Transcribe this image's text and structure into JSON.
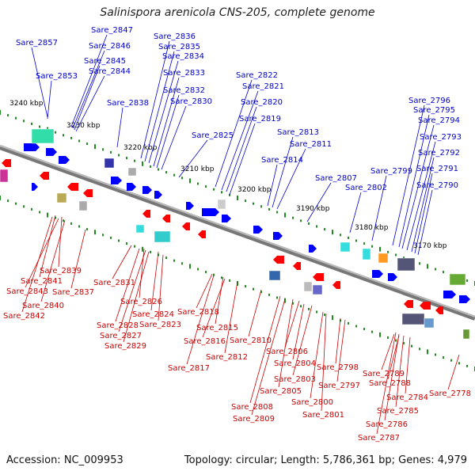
{
  "title": "Salinispora arenicola CNS-205, complete genome",
  "footer": {
    "accession": "Accession: NC_009953",
    "topology": "Topology: circular; Length: 5,786,361 bp; Genes: 4,979"
  },
  "colors": {
    "forward_gene": "#0000ff",
    "reverse_gene": "#ff0000",
    "backbone": "#888888",
    "tick": "#228b22"
  },
  "kbp_labels": [
    "3240 kbp",
    "3230 kbp",
    "3220 kbp",
    "3210 kbp",
    "3200 kbp",
    "3190 kbp",
    "3180 kbp",
    "3170 kbp"
  ],
  "blue_labels": [
    "Sare_2857",
    "Sare_2853",
    "Sare_2847",
    "Sare_2846",
    "Sare_2845",
    "Sare_2844",
    "Sare_2838",
    "Sare_2836",
    "Sare_2835",
    "Sare_2834",
    "Sare_2833",
    "Sare_2832",
    "Sare_2830",
    "Sare_2825",
    "Sare_2822",
    "Sare_2821",
    "Sare_2820",
    "Sare_2819",
    "Sare_2814",
    "Sare_2813",
    "Sare_2811",
    "Sare_2807",
    "Sare_2802",
    "Sare_2799",
    "Sare_2796",
    "Sare_2795",
    "Sare_2794",
    "Sare_2793",
    "Sare_2792",
    "Sare_2791",
    "Sare_2790"
  ],
  "red_labels": [
    "Sare_2841",
    "Sare_2839",
    "Sare_2843",
    "Sare_2840",
    "Sare_2842",
    "Sare_2837",
    "Sare_2831",
    "Sare_2826",
    "Sare_2824",
    "Sare_2828",
    "Sare_2827",
    "Sare_2823",
    "Sare_2829",
    "Sare_2818",
    "Sare_2815",
    "Sare_2816",
    "Sare_2817",
    "Sare_2812",
    "Sare_2810",
    "Sare_2806",
    "Sare_2804",
    "Sare_2803",
    "Sare_2805",
    "Sare_2798",
    "Sare_2797",
    "Sare_2800",
    "Sare_2808",
    "Sare_2801",
    "Sare_2809",
    "Sare_2789",
    "Sare_2788",
    "Sare_2784",
    "Sare_2785",
    "Sare_2786",
    "Sare_2787",
    "Sare_2778"
  ]
}
